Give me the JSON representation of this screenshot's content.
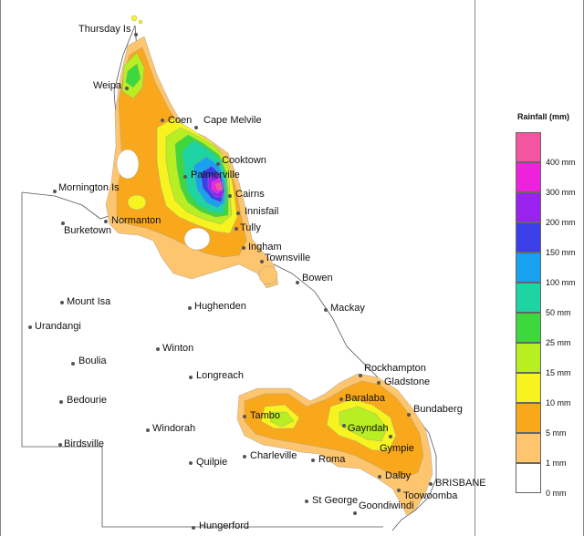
{
  "map": {
    "places": [
      {
        "id": "thursday-is",
        "label": "Thursday Is"
      },
      {
        "id": "weipa",
        "label": "Weipa"
      },
      {
        "id": "coen",
        "label": "Coen"
      },
      {
        "id": "cape-melvile",
        "label": "Cape Melvile"
      },
      {
        "id": "cooktown",
        "label": "Cooktown"
      },
      {
        "id": "palmerville",
        "label": "Palmerville"
      },
      {
        "id": "cairns",
        "label": "Cairns"
      },
      {
        "id": "innisfail",
        "label": "Innisfail"
      },
      {
        "id": "tully",
        "label": "Tully"
      },
      {
        "id": "ingham",
        "label": "Ingham"
      },
      {
        "id": "townsville",
        "label": "Townsville"
      },
      {
        "id": "bowen",
        "label": "Bowen"
      },
      {
        "id": "mackay",
        "label": "Mackay"
      },
      {
        "id": "mornington-is",
        "label": "Mornington Is"
      },
      {
        "id": "normanton",
        "label": "Normanton"
      },
      {
        "id": "burketown",
        "label": "Burketown"
      },
      {
        "id": "mount-isa",
        "label": "Mount Isa"
      },
      {
        "id": "urandangi",
        "label": "Urandangi"
      },
      {
        "id": "hughenden",
        "label": "Hughenden"
      },
      {
        "id": "winton",
        "label": "Winton"
      },
      {
        "id": "boulia",
        "label": "Boulia"
      },
      {
        "id": "longreach",
        "label": "Longreach"
      },
      {
        "id": "bedourie",
        "label": "Bedourie"
      },
      {
        "id": "windorah",
        "label": "Windorah"
      },
      {
        "id": "birdsville",
        "label": "Birdsville"
      },
      {
        "id": "quilpie",
        "label": "Quilpie"
      },
      {
        "id": "charleville",
        "label": "Charleville"
      },
      {
        "id": "tambo",
        "label": "Tambo"
      },
      {
        "id": "roma",
        "label": "Roma"
      },
      {
        "id": "st-george",
        "label": "St George"
      },
      {
        "id": "goondiwindi",
        "label": "Goondiwindi"
      },
      {
        "id": "hungerford",
        "label": "Hungerford"
      },
      {
        "id": "rockhampton",
        "label": "Rockhampton"
      },
      {
        "id": "gladstone",
        "label": "Gladstone"
      },
      {
        "id": "baralaba",
        "label": "Baralaba"
      },
      {
        "id": "bundaberg",
        "label": "Bundaberg"
      },
      {
        "id": "gayndah",
        "label": "Gayndah"
      },
      {
        "id": "gympie",
        "label": "Gympie"
      },
      {
        "id": "dalby",
        "label": "Dalby"
      },
      {
        "id": "brisbane",
        "label": "BRISBANE"
      },
      {
        "id": "toowoomba",
        "label": "Toowoomba"
      }
    ]
  },
  "legend": {
    "title": "Rainfall (mm)",
    "bins": [
      {
        "label": "400 mm",
        "color": "#f455a0"
      },
      {
        "label": "300 mm",
        "color": "#ee22dd"
      },
      {
        "label": "200 mm",
        "color": "#9922ee"
      },
      {
        "label": "150 mm",
        "color": "#3b3fe8"
      },
      {
        "label": "100 mm",
        "color": "#19a0ee"
      },
      {
        "label": "50 mm",
        "color": "#1dd4a2"
      },
      {
        "label": "25 mm",
        "color": "#3cd83c"
      },
      {
        "label": "15 mm",
        "color": "#b8ef22"
      },
      {
        "label": "10 mm",
        "color": "#f6f31f"
      },
      {
        "label": "5 mm",
        "color": "#f9a81b"
      },
      {
        "label": "1 mm",
        "color": "#fcc56e"
      },
      {
        "label": "0 mm",
        "color": "#ffffff"
      }
    ]
  }
}
